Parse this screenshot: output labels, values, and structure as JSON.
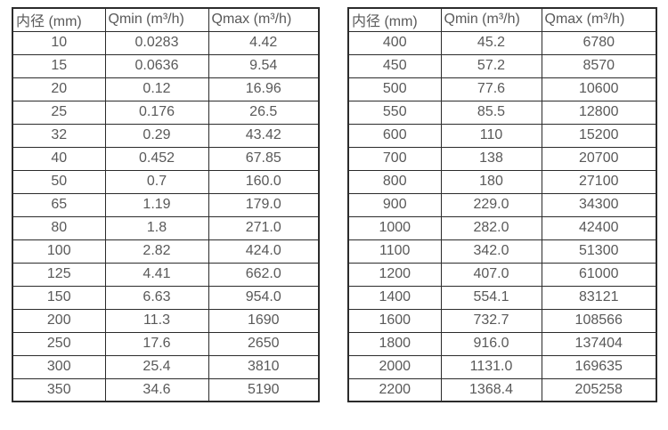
{
  "colors": {
    "background": "#ffffff",
    "border": "#2b2b2b",
    "text": "#595959"
  },
  "chart_data": [
    {
      "type": "table",
      "name": "flow-rate-table-small-diameters",
      "columns": [
        "内径 (mm)",
        "Qmin (m³/h)",
        "Qmax (m³/h)"
      ],
      "rows": [
        [
          "10",
          "0.0283",
          "4.42"
        ],
        [
          "15",
          "0.0636",
          "9.54"
        ],
        [
          "20",
          "0.12",
          "16.96"
        ],
        [
          "25",
          "0.176",
          "26.5"
        ],
        [
          "32",
          "0.29",
          "43.42"
        ],
        [
          "40",
          "0.452",
          "67.85"
        ],
        [
          "50",
          "0.7",
          "160.0"
        ],
        [
          "65",
          "1.19",
          "179.0"
        ],
        [
          "80",
          "1.8",
          "271.0"
        ],
        [
          "100",
          "2.82",
          "424.0"
        ],
        [
          "125",
          "4.41",
          "662.0"
        ],
        [
          "150",
          "6.63",
          "954.0"
        ],
        [
          "200",
          "11.3",
          "1690"
        ],
        [
          "250",
          "17.6",
          "2650"
        ],
        [
          "300",
          "25.4",
          "3810"
        ],
        [
          "350",
          "34.6",
          "5190"
        ]
      ]
    },
    {
      "type": "table",
      "name": "flow-rate-table-large-diameters",
      "columns": [
        "内径 (mm)",
        "Qmin (m³/h)",
        "Qmax (m³/h)"
      ],
      "rows": [
        [
          "400",
          "45.2",
          "6780"
        ],
        [
          "450",
          "57.2",
          "8570"
        ],
        [
          "500",
          "77.6",
          "10600"
        ],
        [
          "550",
          "85.5",
          "12800"
        ],
        [
          "600",
          "110",
          "15200"
        ],
        [
          "700",
          "138",
          "20700"
        ],
        [
          "800",
          "180",
          "27100"
        ],
        [
          "900",
          "229.0",
          "34300"
        ],
        [
          "1000",
          "282.0",
          "42400"
        ],
        [
          "1100",
          "342.0",
          "51300"
        ],
        [
          "1200",
          "407.0",
          "61000"
        ],
        [
          "1400",
          "554.1",
          "83121"
        ],
        [
          "1600",
          "732.7",
          "108566"
        ],
        [
          "1800",
          "916.0",
          "137404"
        ],
        [
          "2000",
          "1131.0",
          "169635"
        ],
        [
          "2200",
          "1368.4",
          "205258"
        ]
      ]
    }
  ]
}
